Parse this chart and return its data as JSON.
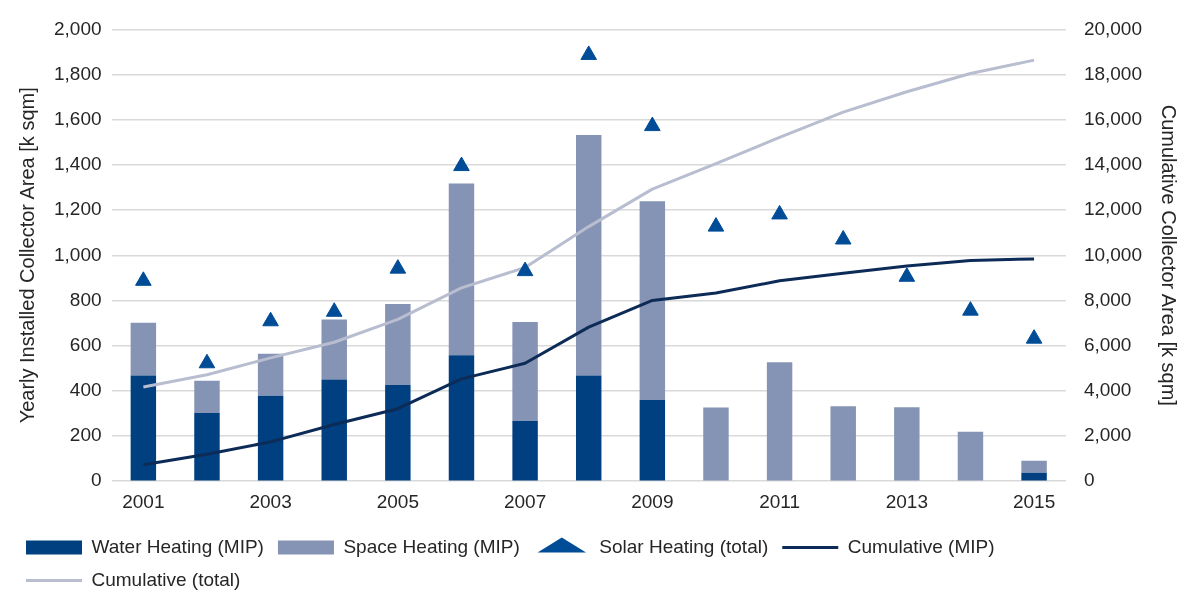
{
  "chart_data": {
    "type": "bar",
    "stacked": true,
    "ylabel": "Yearly Installed Collector Area [k sqm]",
    "y2label": "Cumulative Collector Area [k sqm]",
    "categories": [
      "2001",
      null,
      "2003",
      null,
      "2005",
      null,
      "2007",
      null,
      "2009",
      null,
      "2011",
      null,
      "2013",
      null,
      "2015"
    ],
    "ylim": [
      0,
      2000
    ],
    "yticks": [
      {
        "value": 0,
        "label": "0"
      },
      {
        "value": 200,
        "label": "200"
      },
      {
        "value": 400,
        "label": "400"
      },
      {
        "value": 600,
        "label": "600"
      },
      {
        "value": 800,
        "label": "800"
      },
      {
        "value": 1000,
        "label": "1,000"
      },
      {
        "value": 1200,
        "label": "1,200"
      },
      {
        "value": 1400,
        "label": "1,400"
      },
      {
        "value": 1600,
        "label": "1,600"
      },
      {
        "value": 1800,
        "label": "1,800"
      },
      {
        "value": 2000,
        "label": "2,000"
      }
    ],
    "y2lim": [
      0,
      20000
    ],
    "y2ticks": [
      {
        "value": 0,
        "label": "0"
      },
      {
        "value": 2000,
        "label": "2,000"
      },
      {
        "value": 4000,
        "label": "4,000"
      },
      {
        "value": 6000,
        "label": "6,000"
      },
      {
        "value": 8000,
        "label": "8,000"
      },
      {
        "value": 10000,
        "label": "10,000"
      },
      {
        "value": 12000,
        "label": "12,000"
      },
      {
        "value": 14000,
        "label": "14,000"
      },
      {
        "value": 16000,
        "label": "16,000"
      },
      {
        "value": 18000,
        "label": "18,000"
      },
      {
        "value": 20000,
        "label": "20,000"
      }
    ],
    "grid": "y",
    "legend": "bottom",
    "series": [
      {
        "name": "Water Heating (MIP)",
        "color": "#004080",
        "values": [
          468,
          302,
          378,
          450,
          426,
          557,
          267,
          468,
          360,
          0,
          0,
          0,
          0,
          0,
          37
        ]
      },
      {
        "name": "Space Heating (MIP)",
        "color": "#8593b4",
        "values": [
          233,
          143,
          186,
          266,
          358,
          761,
          438,
          1064,
          879,
          326,
          527,
          332,
          327,
          219,
          53
        ]
      },
      {
        "name": "Solar Heating (total)",
        "type": "scatter",
        "marker": "triangle",
        "color": "#004c97",
        "values": [
          887,
          522,
          708,
          750,
          941,
          1395,
          930,
          1887,
          1572,
          1127,
          1181,
          1070,
          905,
          755,
          631
        ]
      },
      {
        "name": "Cumulative (MIP)",
        "type": "line",
        "axis": "y2",
        "color": "#0c2b57",
        "values": [
          730,
          1190,
          1740,
          2510,
          3210,
          4530,
          5220,
          6820,
          8000,
          8330,
          8870,
          9210,
          9530,
          9770,
          9840
        ]
      },
      {
        "name": "Cumulative (total)",
        "type": "line",
        "axis": "y2",
        "color": "#b8bdd0",
        "values": [
          4170,
          4710,
          5460,
          6150,
          7160,
          8560,
          9460,
          11270,
          12930,
          14060,
          15220,
          16340,
          17240,
          18050,
          18640
        ]
      }
    ]
  }
}
